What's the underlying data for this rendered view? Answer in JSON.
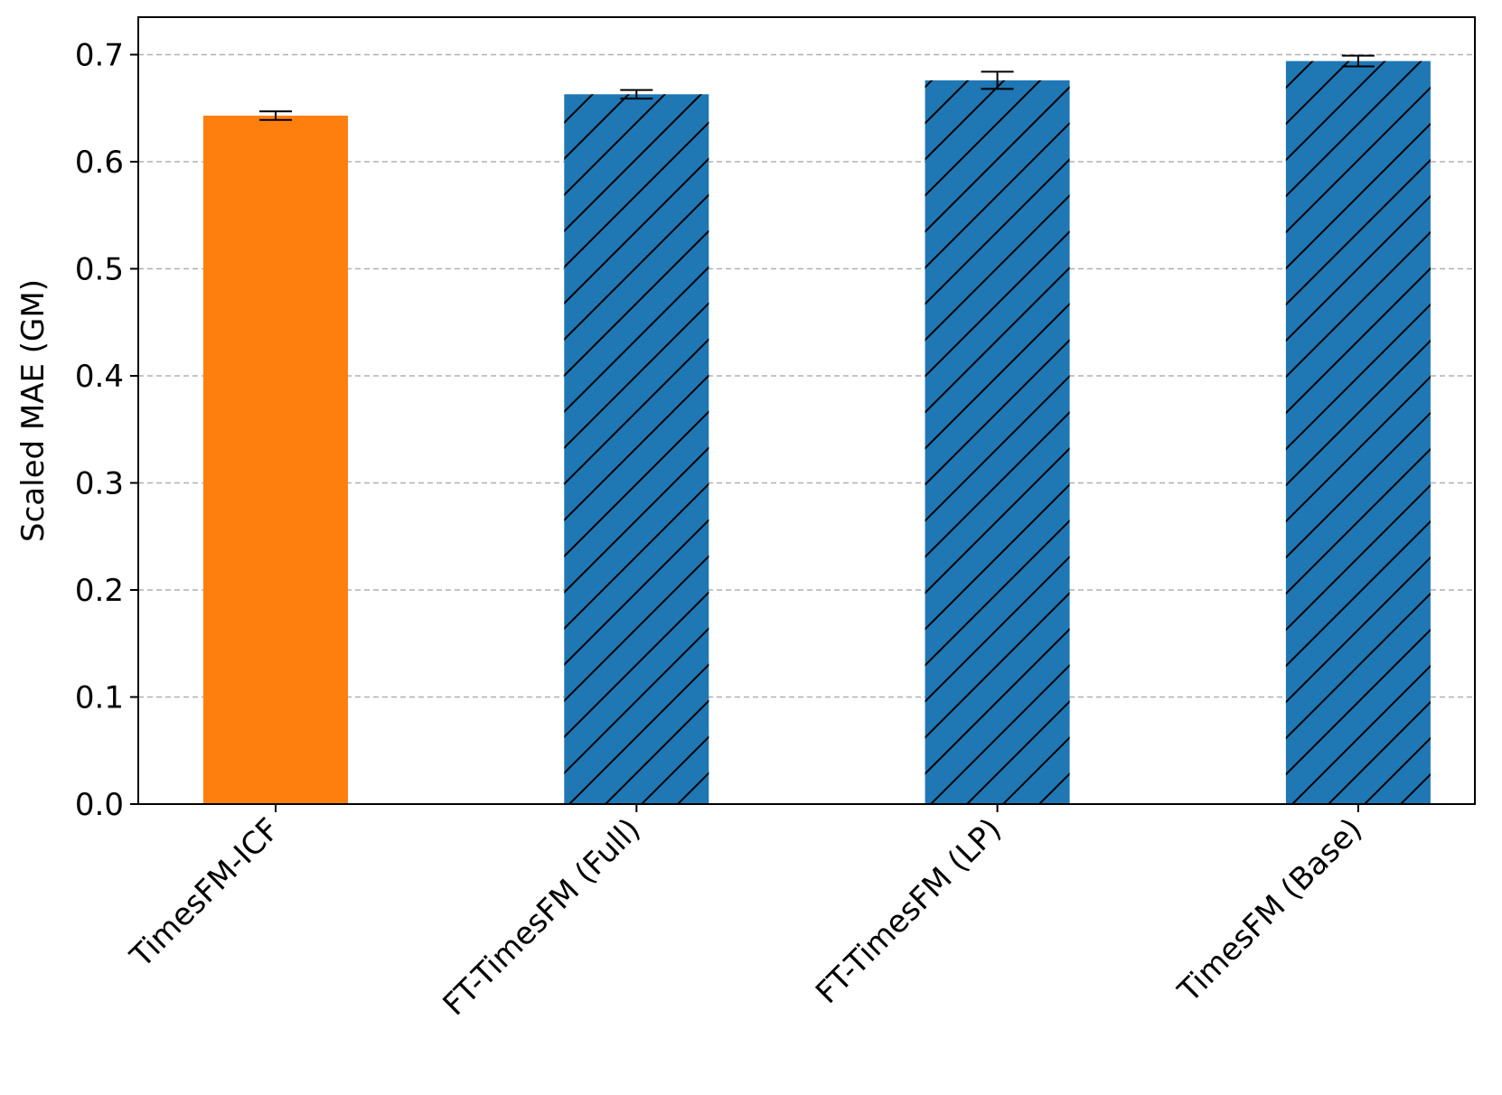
{
  "chart_data": {
    "type": "bar",
    "title": "",
    "xlabel": "",
    "ylabel": "Scaled MAE (GM)",
    "categories": [
      "TimesFM-ICF",
      "FT-TimesFM (Full)",
      "FT-TimesFM (LP)",
      "TimesFM (Base)"
    ],
    "values": [
      0.643,
      0.663,
      0.676,
      0.694
    ],
    "errors": [
      0.004,
      0.004,
      0.008,
      0.005
    ],
    "bar_colors": [
      "#ff7f0e",
      "#1f77b4",
      "#1f77b4",
      "#1f77b4"
    ],
    "bar_hatched": [
      false,
      true,
      true,
      true
    ],
    "ylim": [
      0.0,
      0.735
    ],
    "yticks": [
      "0.0",
      "0.1",
      "0.2",
      "0.3",
      "0.4",
      "0.5",
      "0.6",
      "0.7"
    ],
    "grid": "y-dashed",
    "legend": "none"
  }
}
